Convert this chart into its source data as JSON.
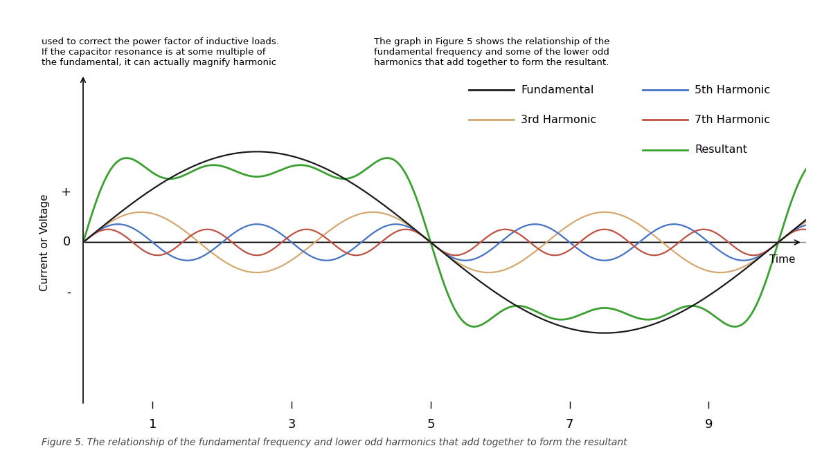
{
  "title": "Figure 5. The relationship of the fundamental frequency and lower odd harmonics that add together to form the resultant",
  "ylabel": "Current or Voltage",
  "xlabel": "Time",
  "plus_label": "+",
  "minus_label": "-",
  "zero_label": "0",
  "x_ticks": [
    1,
    3,
    5,
    7,
    9
  ],
  "amp1": 1.0,
  "amp3": 0.333,
  "amp5": 0.2,
  "amp7": 0.143,
  "fundamental_color": "#1a1a1a",
  "third_color": "#d4a870",
  "fifth_color": "#4472c4",
  "seventh_color": "#c05040",
  "resultant_color": "#3aa030",
  "background_color": "#f0f0f0",
  "ylim_low": -1.85,
  "ylim_high": 1.85,
  "xlim_low": 0.0,
  "xlim_high": 10.4,
  "x_period": 10,
  "figsize": [
    12.0,
    6.74
  ],
  "dpi": 100,
  "top_text_left": "used to correct the power factor of inductive loads.\nIf the capacitor resonance is at some multiple of\nthe fundamental, it can actually magnify harmonic",
  "top_text_right": "The graph in Figure 5 shows the relationship of the\nfundamental frequency and some of the lower odd\nharmonics that add together to form the resultant.",
  "caption": "Figure 5. The relationship of the fundamental frequency and lower odd harmonics that add together to form the resultant"
}
